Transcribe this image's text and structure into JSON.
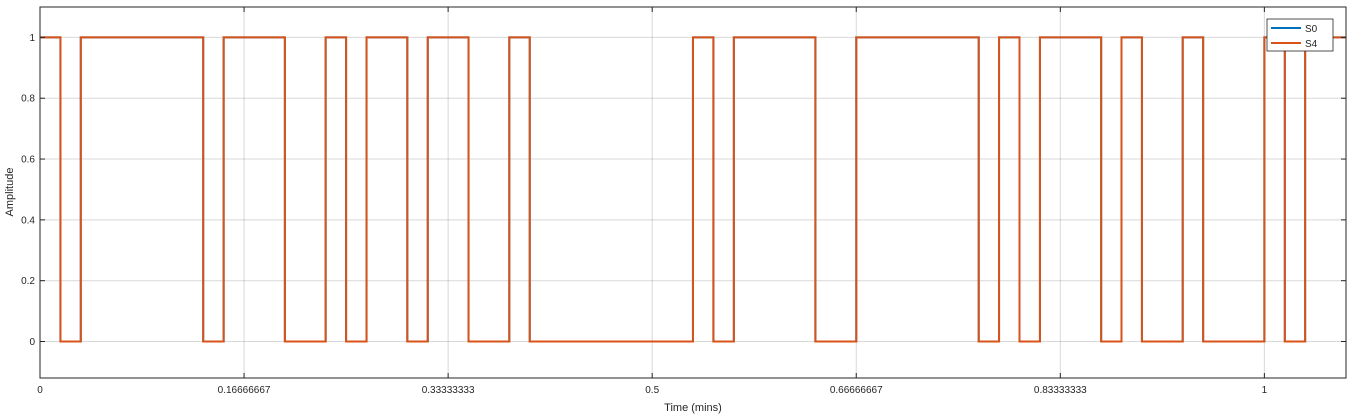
{
  "chart_data": {
    "type": "line",
    "xlabel": "Time (mins)",
    "ylabel": "Amplitude",
    "xlim": [
      0,
      1.0666667
    ],
    "ylim": [
      -0.12,
      1.1
    ],
    "x_ticks": [
      0,
      0.16666667,
      0.33333333,
      0.5,
      0.66666667,
      0.83333333,
      1
    ],
    "x_tick_labels": [
      "0",
      "0.16666667",
      "0.33333333",
      "0.5",
      "0.66666667",
      "0.83333333",
      "1"
    ],
    "y_ticks": [
      0,
      0.2,
      0.4,
      0.6,
      0.8,
      1
    ],
    "y_tick_labels": [
      "0",
      "0.2",
      "0.4",
      "0.6",
      "0.8",
      "1"
    ],
    "grid": true,
    "legend_position": "top-right",
    "series": [
      {
        "name": "S0",
        "color": "#0072BD",
        "step_times": [
          0,
          0.0167,
          0.0333,
          0.1333,
          0.15,
          0.2,
          0.2333,
          0.25,
          0.2667,
          0.3,
          0.3167,
          0.35,
          0.3833,
          0.4,
          0.4333,
          0.5333,
          0.55,
          0.5667,
          0.5833,
          0.6333,
          0.6667,
          0.7667,
          0.7833,
          0.8,
          0.8167,
          0.8667,
          0.8833,
          0.9,
          0.9333,
          0.95,
          0.9833,
          1.0,
          1.0167,
          1.0333,
          1.05
        ],
        "values": [
          1,
          0,
          1,
          0,
          1,
          0,
          1,
          0,
          1,
          0,
          1,
          0,
          1,
          0,
          0,
          1,
          0,
          1,
          1,
          0,
          1,
          0,
          1,
          0,
          1,
          0,
          1,
          0,
          1,
          0,
          0,
          1,
          0,
          1,
          1
        ]
      },
      {
        "name": "S4",
        "color": "#D95319",
        "step_times": [
          0,
          0.0167,
          0.0333,
          0.1333,
          0.15,
          0.2,
          0.2333,
          0.25,
          0.2667,
          0.3,
          0.3167,
          0.35,
          0.3833,
          0.4,
          0.4333,
          0.5333,
          0.55,
          0.5667,
          0.5833,
          0.6333,
          0.6667,
          0.7667,
          0.7833,
          0.8,
          0.8167,
          0.8667,
          0.8833,
          0.9,
          0.9333,
          0.95,
          0.9833,
          1.0,
          1.0167,
          1.0333,
          1.05
        ],
        "values": [
          1,
          0,
          1,
          0,
          1,
          0,
          1,
          0,
          1,
          0,
          1,
          0,
          1,
          0,
          0,
          1,
          0,
          1,
          1,
          0,
          1,
          0,
          1,
          0,
          1,
          0,
          1,
          0,
          1,
          0,
          0,
          1,
          0,
          1,
          1
        ]
      }
    ]
  }
}
